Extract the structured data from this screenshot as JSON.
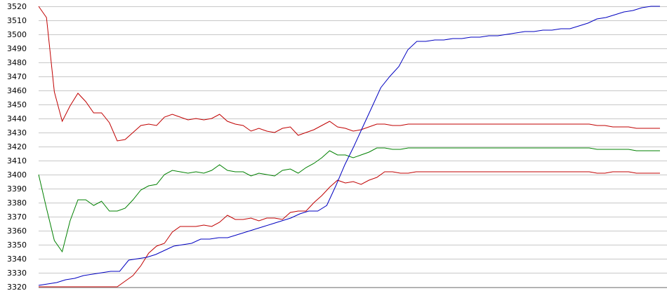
{
  "chart_data": {
    "type": "line",
    "title": "",
    "xlabel": "",
    "ylabel": "",
    "ylim": [
      3320,
      3520
    ],
    "yticks": [
      3320,
      3330,
      3340,
      3350,
      3360,
      3370,
      3380,
      3390,
      3400,
      3410,
      3420,
      3430,
      3440,
      3450,
      3460,
      3470,
      3480,
      3490,
      3500,
      3510,
      3520
    ],
    "grid": true,
    "legend": "none",
    "series": [
      {
        "color": "#c00000",
        "values": [
          3520,
          3512,
          3459,
          3438,
          3449,
          3458,
          3452,
          3444,
          3444,
          3437,
          3424,
          3425,
          3430,
          3435,
          3436,
          3435,
          3441,
          3443,
          3441,
          3439,
          3440,
          3439,
          3440,
          3443,
          3438,
          3436,
          3435,
          3431,
          3433,
          3431,
          3430,
          3433,
          3434,
          3428,
          3430,
          3432,
          3435,
          3438,
          3434,
          3433,
          3431,
          3432,
          3434,
          3436,
          3436,
          3435,
          3435,
          3436,
          3436,
          3436,
          3436,
          3436,
          3436,
          3436,
          3436,
          3436,
          3436,
          3436,
          3436,
          3436,
          3436,
          3436,
          3436,
          3436,
          3436,
          3436,
          3436,
          3436,
          3436,
          3436,
          3436,
          3435,
          3435,
          3434,
          3434,
          3434,
          3433,
          3433,
          3433,
          3433
        ]
      },
      {
        "color": "#008000",
        "values": [
          3400,
          3376,
          3353,
          3345,
          3367,
          3382,
          3382,
          3378,
          3381,
          3374,
          3374,
          3376,
          3382,
          3389,
          3392,
          3393,
          3400,
          3403,
          3402,
          3401,
          3402,
          3401,
          3403,
          3407,
          3403,
          3402,
          3402,
          3399,
          3401,
          3400,
          3399,
          3403,
          3404,
          3401,
          3405,
          3408,
          3412,
          3417,
          3414,
          3414,
          3412,
          3414,
          3416,
          3419,
          3419,
          3418,
          3418,
          3419,
          3419,
          3419,
          3419,
          3419,
          3419,
          3419,
          3419,
          3419,
          3419,
          3419,
          3419,
          3419,
          3419,
          3419,
          3419,
          3419,
          3419,
          3419,
          3419,
          3419,
          3419,
          3419,
          3419,
          3418,
          3418,
          3418,
          3418,
          3418,
          3417,
          3417,
          3417,
          3417
        ]
      },
      {
        "color": "#c00000",
        "values": [
          3320,
          3320,
          3320,
          3320,
          3320,
          3320,
          3320,
          3320,
          3320,
          3320,
          3320,
          3324,
          3328,
          3335,
          3344,
          3349,
          3351,
          3359,
          3363,
          3363,
          3363,
          3364,
          3363,
          3366,
          3371,
          3368,
          3368,
          3369,
          3367,
          3369,
          3369,
          3368,
          3373,
          3374,
          3374,
          3380,
          3385,
          3391,
          3396,
          3394,
          3395,
          3393,
          3396,
          3398,
          3402,
          3402,
          3401,
          3401,
          3402,
          3402,
          3402,
          3402,
          3402,
          3402,
          3402,
          3402,
          3402,
          3402,
          3402,
          3402,
          3402,
          3402,
          3402,
          3402,
          3402,
          3402,
          3402,
          3402,
          3402,
          3402,
          3402,
          3401,
          3401,
          3402,
          3402,
          3402,
          3401,
          3401,
          3401,
          3401
        ]
      },
      {
        "color": "#0000c0",
        "values": [
          3321,
          3322,
          3323,
          3325,
          3326,
          3328,
          3329,
          3330,
          3331,
          3331,
          3339,
          3340,
          3341,
          3343,
          3346,
          3349,
          3350,
          3351,
          3354,
          3354,
          3355,
          3355,
          3357,
          3359,
          3361,
          3363,
          3365,
          3367,
          3369,
          3372,
          3374,
          3374,
          3378,
          3392,
          3407,
          3420,
          3434,
          3448,
          3462,
          3470,
          3477,
          3489,
          3495,
          3495,
          3496,
          3496,
          3497,
          3497,
          3498,
          3498,
          3499,
          3499,
          3500,
          3501,
          3502,
          3502,
          3503,
          3503,
          3504,
          3504,
          3506,
          3508,
          3511,
          3512,
          3514,
          3516,
          3517,
          3519,
          3520,
          3520
        ]
      }
    ]
  }
}
